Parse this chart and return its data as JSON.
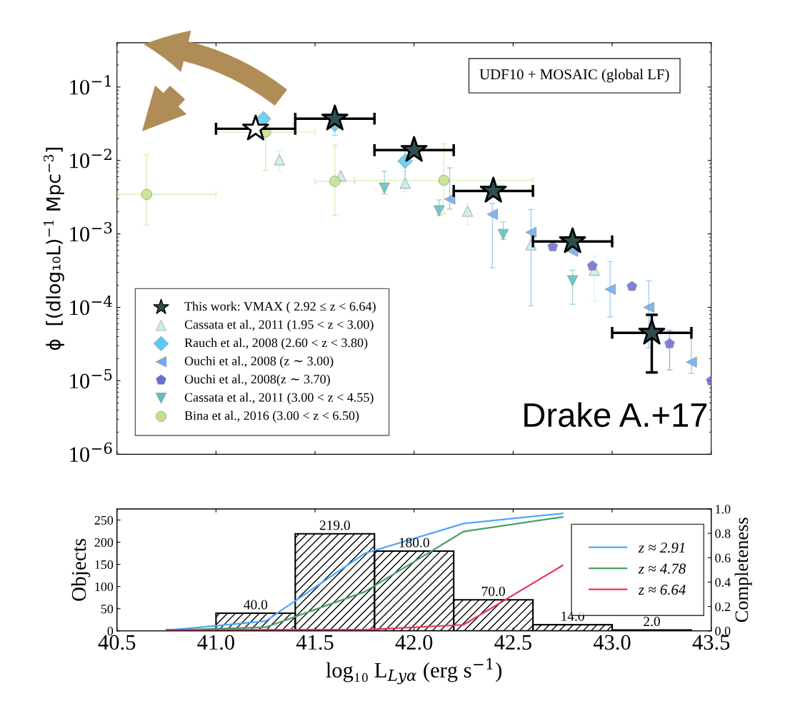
{
  "chart_data": [
    {
      "type": "scatter",
      "ylabel": "ϕ  [(dlog₁₀L)$^{−1}$ Mpc$^{−3}$]",
      "log": "y",
      "xlim": [
        40.5,
        43.5
      ],
      "xticks": [
        40.5,
        41.0,
        41.5,
        42.0,
        42.5,
        43.0,
        43.5
      ],
      "ylim": [
        1e-06,
        0.4
      ],
      "yticks": [
        {
          "value": 1e-06,
          "label": "10$^{−6}$"
        },
        {
          "value": 1e-05,
          "label": "10$^{−5}$"
        },
        {
          "value": 0.0001,
          "label": "10$^{−4}$"
        },
        {
          "value": 0.001,
          "label": "10$^{−3}$"
        },
        {
          "value": 0.01,
          "label": "10$^{−2}$"
        },
        {
          "value": 0.1,
          "label": "10$^{−1}$"
        }
      ],
      "tick_labels": "y",
      "legend": "bottom left",
      "grid": false,
      "annotations": [
        "UDF10 + MOSAIC (global LF)",
        "Drake A.+17"
      ],
      "series": [
        {
          "name": "This work: VMAX ( 2.92 ≤ z < 6.64)",
          "color": "#2f4f4f",
          "colors": [
            "#ffffff",
            "#2f4f4f",
            "#2f4f4f",
            "#2f4f4f",
            "#2f4f4f",
            "#2f4f4f"
          ],
          "marker": "star",
          "x": [
            41.2,
            41.6,
            42.0,
            42.4,
            42.8,
            43.2
          ],
          "values": [
            0.027,
            0.037,
            0.0138,
            0.00385,
            0.00079,
            4.5e-05
          ],
          "xerrors": [
            [
              41.0,
              41.4
            ],
            [
              41.4,
              41.8
            ],
            [
              41.8,
              42.2
            ],
            [
              42.2,
              42.6
            ],
            [
              42.6,
              43.0
            ],
            [
              43.0,
              43.4
            ]
          ],
          "errors": [
            null,
            null,
            null,
            null,
            null,
            [
              1.3e-05,
              7.9e-05
            ]
          ]
        },
        {
          "name": "Cassata et al., 2011 (1.95 < z < 3.00)",
          "color": "#c5ecec",
          "marker": "triangle",
          "x": [
            41.32,
            41.63,
            41.955,
            42.27,
            42.59,
            42.91
          ],
          "values": [
            0.0102,
            0.0062,
            0.0049,
            0.00204,
            0.00071,
            0.00032
          ],
          "errors": [
            [
              0.0071,
              0.0136
            ],
            null,
            [
              0.00375,
              0.0071
            ],
            [
              0.00133,
              0.00258
            ],
            null,
            [
              0.00012,
              0.0005
            ]
          ]
        },
        {
          "name": "Rauch et al., 2008 (2.60 < z < 3.80)",
          "color": "#5bc8f5",
          "marker": "diamond",
          "x": [
            41.24,
            41.6,
            41.955
          ],
          "values": [
            0.037,
            0.031,
            0.0098
          ],
          "errors": [
            null,
            [
              0.022,
              0.04
            ],
            [
              0.0042,
              0.0135
            ]
          ]
        },
        {
          "name": "Ouchi et al., 2008 (z ∼ 3.00)",
          "color": "#6aaaf0",
          "marker": "triangle-left",
          "x": [
            42.18,
            42.395,
            42.59,
            42.8,
            42.99,
            43.185,
            43.4
          ],
          "values": [
            0.00297,
            0.00185,
            0.00105,
            0.00058,
            0.000176,
            0.0001,
            1.8e-05
          ],
          "errors": [
            [
              0.00218,
              0.0079
            ],
            [
              0.000345,
              0.0026
            ],
            [
              0.000105,
              0.00215
            ],
            null,
            [
              7.4e-05,
              0.00042
            ],
            [
              2.8e-05,
              0.00023
            ],
            [
              1.26e-05,
              4.9e-05
            ]
          ]
        },
        {
          "name": "Ouchi et al., 2008(z ∼ 3.70)",
          "color": "#6a6ad8",
          "x": [
            42.7,
            42.9,
            43.1,
            43.29,
            43.5
          ],
          "values": [
            0.00067,
            0.000366,
            0.000193,
            3.2e-05,
            1e-05
          ],
          "errors": [
            null,
            null,
            null,
            [
              1.4e-05,
              4.85e-05
            ],
            null
          ]
        },
        {
          "name": "Cassata et al., 2011 (3.00 < z < 4.55)",
          "color": "#5fbfbf",
          "marker": "triangle-down",
          "x": [
            41.85,
            42.126,
            42.45,
            42.8
          ],
          "values": [
            0.0042,
            0.00206,
            0.00098,
            0.00023
          ],
          "errors": [
            [
              0.0035,
              0.0071
            ],
            [
              0.00178,
              0.0029
            ],
            [
              0.00084,
              0.00145
            ],
            [
              0.00011,
              0.00032
            ]
          ]
        },
        {
          "name": "Bina et al., 2016 (3.00 < z < 6.50)",
          "color": "#c5e08a",
          "marker": "circle",
          "x": [
            40.65,
            41.25,
            41.6,
            42.15
          ],
          "values": [
            0.00345,
            0.0243,
            0.0052,
            0.00536
          ],
          "xerrors": [
            [
              40.51,
              41.0
            ],
            [
              41.0,
              41.5
            ],
            [
              41.5,
              41.7
            ],
            [
              41.7,
              42.6
            ]
          ],
          "errors": [
            [
              0.00133,
              0.012
            ],
            [
              0.0073,
              0.035
            ],
            [
              0.00177,
              0.0161
            ],
            [
              0.00185,
              0.0168
            ]
          ]
        }
      ]
    },
    {
      "type": "histogram",
      "xlabel": "log₁₀ L$_{Lyα}$ (erg s$^{−1}$)",
      "ylabel": "Objects",
      "y2label": "Completeness",
      "color": "#000000",
      "bins": [
        41.0,
        41.4,
        41.8,
        42.2,
        42.6,
        43.0,
        43.4
      ],
      "values": [
        40,
        219,
        180,
        70,
        14,
        2
      ],
      "value_labels": [
        "40.0",
        "219.0",
        "180.0",
        "70.0",
        "14.0",
        "2.0"
      ],
      "xlim": [
        40.5,
        43.5
      ],
      "xticks": [
        {
          "value": 40.5,
          "label": "40.5"
        },
        {
          "value": 41.0,
          "label": "41.0"
        },
        {
          "value": 41.5,
          "label": "41.5"
        },
        {
          "value": 42.0,
          "label": "42.0"
        },
        {
          "value": 42.5,
          "label": "42.5"
        },
        {
          "value": 43.0,
          "label": "43.0"
        },
        {
          "value": 43.5,
          "label": "43.5"
        }
      ],
      "ylim": [
        0,
        275
      ],
      "yticks": [
        0,
        50,
        100,
        150,
        200,
        250
      ],
      "y2lim": [
        0,
        1.0
      ],
      "y2ticks": [
        {
          "value": 0,
          "label": "0.0"
        },
        {
          "value": 0.2,
          "label": "0.2"
        },
        {
          "value": 0.4,
          "label": "0.4"
        },
        {
          "value": 0.6,
          "label": "0.6"
        },
        {
          "value": 0.8,
          "label": "0.8"
        },
        {
          "value": 1.0,
          "label": "1.0"
        }
      ],
      "legend": "right",
      "grid": false,
      "series": [
        {
          "name": "z ≈ 2.91",
          "type": "line",
          "axis": "y2",
          "color": "#4da6ff",
          "x": [
            40.75,
            41.25,
            41.75,
            42.25,
            42.75
          ],
          "values": [
            0.005,
            0.08,
            0.635,
            0.88,
            0.963
          ]
        },
        {
          "name": "z ≈ 4.78",
          "type": "line",
          "axis": "y2",
          "color": "#4a9e6a",
          "x": [
            40.75,
            41.25,
            41.75,
            42.25,
            42.75
          ],
          "values": [
            0.005,
            0.03,
            0.32,
            0.815,
            0.934
          ]
        },
        {
          "name": "z ≈ 6.64",
          "type": "line",
          "axis": "y2",
          "color": "#e8365a",
          "x": [
            40.75,
            41.25,
            41.75,
            42.25,
            42.75
          ],
          "values": [
            0.01,
            0.01,
            0.01,
            0.05,
            0.537
          ]
        }
      ]
    }
  ]
}
